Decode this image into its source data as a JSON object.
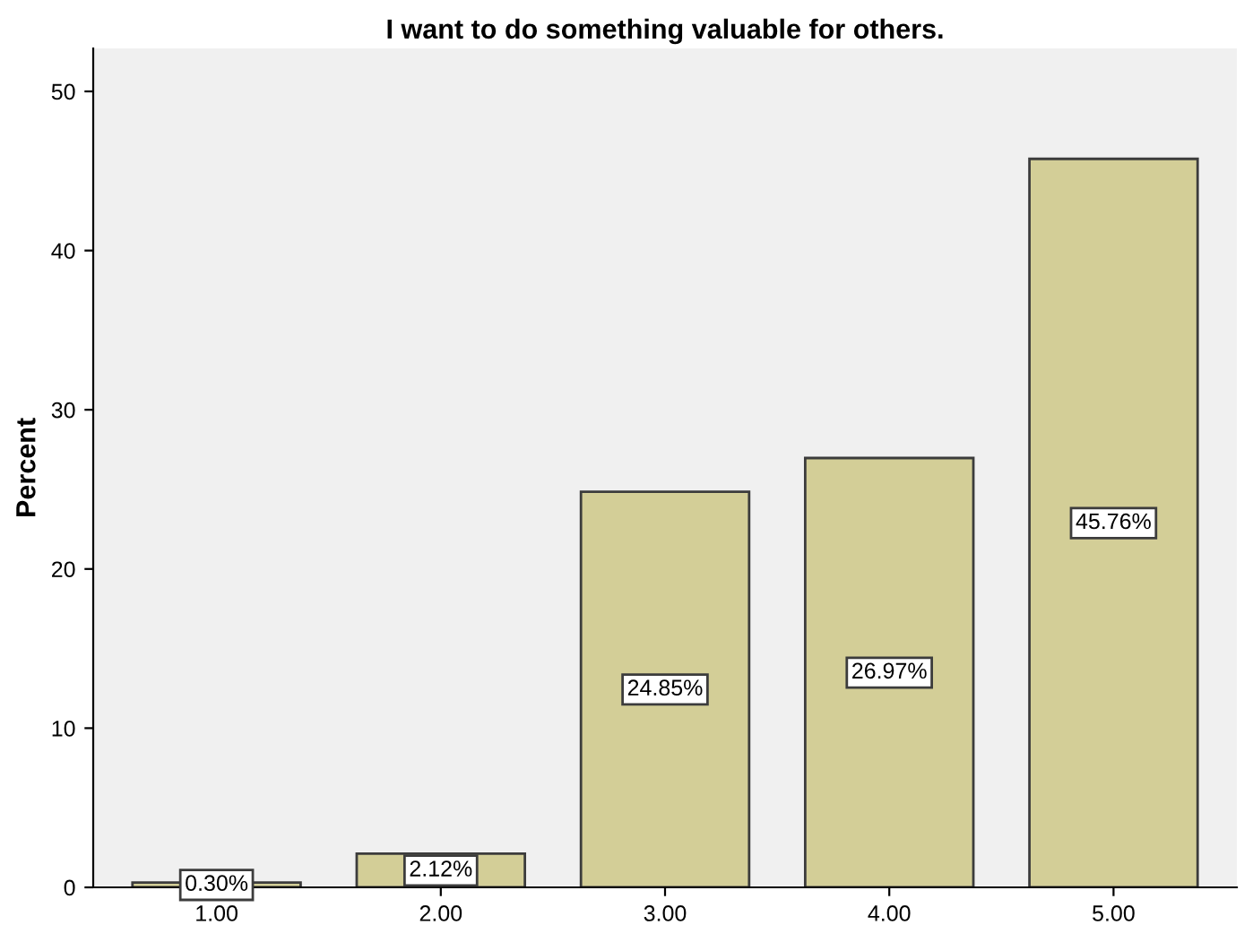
{
  "chart_data": {
    "type": "bar",
    "title": "I want to do something valuable for others.",
    "ylabel": "Percent",
    "categories": [
      "1.00",
      "2.00",
      "3.00",
      "4.00",
      "5.00"
    ],
    "values": [
      0.3,
      2.12,
      24.85,
      26.97,
      45.76
    ],
    "value_labels": [
      "0.30%",
      "2.12%",
      "24.85%",
      "26.97%",
      "45.76%"
    ],
    "color": "#d3ce97",
    "ylim": [
      0,
      52.7
    ],
    "yticks": [
      0,
      10,
      20,
      30,
      40,
      50
    ],
    "grid": false,
    "legend": false
  }
}
